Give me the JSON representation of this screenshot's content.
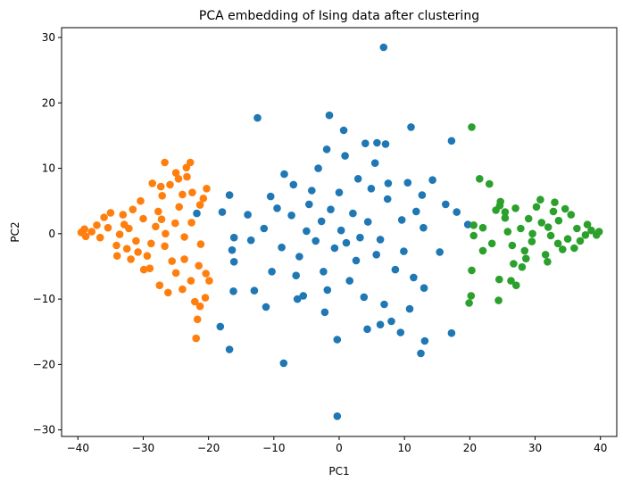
{
  "chart_data": {
    "type": "scatter",
    "title": "PCA embedding of Ising data after clustering",
    "xlabel": "PC1",
    "ylabel": "PC2",
    "xlim": [
      -42.5,
      42.5
    ],
    "ylim": [
      -31,
      31.5
    ],
    "xticks": [
      -40,
      -30,
      -20,
      -10,
      0,
      10,
      20,
      30,
      40
    ],
    "yticks": [
      -30,
      -20,
      -10,
      0,
      10,
      20,
      30
    ],
    "xtick_labels": [
      "−40",
      "−30",
      "−20",
      "−10",
      "0",
      "10",
      "20",
      "30",
      "40"
    ],
    "ytick_labels": [
      "−30",
      "−20",
      "−10",
      "0",
      "10",
      "20",
      "30"
    ],
    "grid": false,
    "legend": false,
    "series": [
      {
        "color": "#1f77b4",
        "values": [
          [
            6.8,
            28.5
          ],
          [
            -1.5,
            18.1
          ],
          [
            -12.5,
            17.7
          ],
          [
            11.0,
            16.3
          ],
          [
            17.2,
            14.2
          ],
          [
            0.7,
            15.8
          ],
          [
            -3.2,
            10.0
          ],
          [
            4.0,
            13.8
          ],
          [
            5.8,
            13.9
          ],
          [
            7.1,
            13.7
          ],
          [
            -1.9,
            12.9
          ],
          [
            0.9,
            11.9
          ],
          [
            14.3,
            8.2
          ],
          [
            -16.8,
            5.9
          ],
          [
            -21.8,
            3.1
          ],
          [
            -17.9,
            3.3
          ],
          [
            -10.5,
            5.7
          ],
          [
            -14.0,
            2.9
          ],
          [
            -13.5,
            -1.0
          ],
          [
            -16.1,
            -0.6
          ],
          [
            -16.4,
            -2.5
          ],
          [
            -16.1,
            -4.3
          ],
          [
            -16.2,
            -8.8
          ],
          [
            -13.0,
            -8.7
          ],
          [
            -18.2,
            -14.2
          ],
          [
            -16.8,
            -17.7
          ],
          [
            -8.5,
            -19.8
          ],
          [
            -0.3,
            -16.2
          ],
          [
            -0.3,
            -27.9
          ],
          [
            12.5,
            -18.3
          ],
          [
            13.1,
            -16.4
          ],
          [
            17.2,
            -15.2
          ],
          [
            4.3,
            -14.6
          ],
          [
            6.3,
            -13.9
          ],
          [
            9.4,
            -15.1
          ],
          [
            8.0,
            -13.4
          ],
          [
            -2.2,
            -12.0
          ],
          [
            19.7,
            1.4
          ],
          [
            18.0,
            3.3
          ],
          [
            16.3,
            4.5
          ],
          [
            15.4,
            -2.8
          ],
          [
            13.0,
            -8.3
          ],
          [
            10.8,
            -11.5
          ],
          [
            -11.2,
            -11.2
          ],
          [
            -6.4,
            -10.0
          ],
          [
            -8.4,
            9.1
          ],
          [
            12.7,
            5.9
          ],
          [
            -4.2,
            6.6
          ],
          [
            2.9,
            8.4
          ],
          [
            7.5,
            7.7
          ],
          [
            11.8,
            3.4
          ],
          [
            9.6,
            2.1
          ],
          [
            7.4,
            5.3
          ],
          [
            5.7,
            -3.2
          ],
          [
            -6.1,
            -3.5
          ],
          [
            -7.3,
            2.8
          ],
          [
            -2.4,
            -5.8
          ],
          [
            1.6,
            -7.2
          ],
          [
            4.9,
            6.9
          ],
          [
            -5.0,
            0.4
          ],
          [
            2.1,
            3.1
          ],
          [
            -0.7,
            -2.2
          ],
          [
            3.2,
            -0.6
          ],
          [
            -2.7,
            1.9
          ],
          [
            0.3,
            0.5
          ],
          [
            1.1,
            -1.4
          ],
          [
            -1.3,
            3.7
          ],
          [
            4.4,
            1.8
          ],
          [
            -3.6,
            -1.1
          ],
          [
            2.6,
            -4.1
          ],
          [
            -4.6,
            4.5
          ],
          [
            6.3,
            -0.9
          ],
          [
            -6.6,
            -6.4
          ],
          [
            8.6,
            -5.5
          ],
          [
            9.9,
            -2.7
          ],
          [
            -8.8,
            -2.1
          ],
          [
            -9.5,
            3.9
          ],
          [
            0.0,
            6.3
          ],
          [
            -1.8,
            -8.6
          ],
          [
            3.8,
            -9.7
          ],
          [
            5.5,
            10.8
          ],
          [
            -7.0,
            7.5
          ],
          [
            10.5,
            7.8
          ],
          [
            -10.3,
            -5.8
          ],
          [
            -11.5,
            0.8
          ],
          [
            12.9,
            0.9
          ],
          [
            11.4,
            -6.7
          ],
          [
            -5.5,
            -9.5
          ],
          [
            6.9,
            -10.8
          ]
        ]
      },
      {
        "color": "#ff7f0e",
        "values": [
          [
            -20.8,
            5.4
          ],
          [
            -20.3,
            6.9
          ],
          [
            -22.8,
            10.9
          ],
          [
            -26.7,
            10.9
          ],
          [
            -25.0,
            9.3
          ],
          [
            -24.6,
            8.4
          ],
          [
            -23.4,
            10.1
          ],
          [
            -23.3,
            8.7
          ],
          [
            -28.6,
            7.7
          ],
          [
            -27.3,
            7.2
          ],
          [
            -27.1,
            5.8
          ],
          [
            -22.5,
            6.3
          ],
          [
            -25.9,
            7.5
          ],
          [
            -21.3,
            4.4
          ],
          [
            -22.6,
            1.7
          ],
          [
            -21.2,
            -1.6
          ],
          [
            -21.5,
            -4.9
          ],
          [
            -20.4,
            -6.1
          ],
          [
            -19.9,
            -7.2
          ],
          [
            -20.5,
            -9.8
          ],
          [
            -22.1,
            -10.4
          ],
          [
            -21.3,
            -11.1
          ],
          [
            -21.7,
            -13.1
          ],
          [
            -21.9,
            -16.0
          ],
          [
            -24.0,
            -8.5
          ],
          [
            -26.2,
            -9.0
          ],
          [
            -27.5,
            -7.9
          ],
          [
            -29.0,
            -5.3
          ],
          [
            -25.6,
            -4.2
          ],
          [
            -23.7,
            -3.9
          ],
          [
            -26.7,
            -1.9
          ],
          [
            -23.7,
            -0.5
          ],
          [
            -25.1,
            1.6
          ],
          [
            -27.7,
            3.4
          ],
          [
            -24.5,
            4.1
          ],
          [
            -30.0,
            2.3
          ],
          [
            -31.1,
            -1.1
          ],
          [
            -32.9,
            1.4
          ],
          [
            -34.1,
            -1.8
          ],
          [
            -35.4,
            0.9
          ],
          [
            -36.6,
            -0.6
          ],
          [
            -37.9,
            0.3
          ],
          [
            -38.8,
            -0.4
          ],
          [
            -39.5,
            0.2
          ],
          [
            -39.0,
            0.7
          ],
          [
            -37.1,
            1.3
          ],
          [
            -33.6,
            -0.1
          ],
          [
            -32.2,
            0.8
          ],
          [
            -30.8,
            -2.8
          ],
          [
            -29.4,
            -3.4
          ],
          [
            -28.1,
            1.1
          ],
          [
            -26.6,
            0.0
          ],
          [
            -35.0,
            3.2
          ],
          [
            -34.0,
            -3.4
          ],
          [
            -31.6,
            3.7
          ],
          [
            -36.0,
            2.5
          ],
          [
            -30.4,
            5.0
          ],
          [
            -32.5,
            -2.3
          ],
          [
            -28.8,
            -1.5
          ],
          [
            -27.2,
            2.2
          ],
          [
            -33.1,
            2.9
          ],
          [
            -31.9,
            -3.9
          ],
          [
            -29.9,
            -5.5
          ],
          [
            -25.0,
            -6.0
          ],
          [
            -24.0,
            6.0
          ],
          [
            -22.7,
            -7.2
          ]
        ]
      },
      {
        "color": "#2ca02c",
        "values": [
          [
            20.3,
            16.3
          ],
          [
            21.5,
            8.4
          ],
          [
            23.0,
            7.6
          ],
          [
            24.7,
            4.9
          ],
          [
            24.6,
            4.3
          ],
          [
            25.4,
            3.3
          ],
          [
            22.0,
            0.9
          ],
          [
            20.6,
            1.3
          ],
          [
            20.6,
            -0.3
          ],
          [
            22.0,
            -2.6
          ],
          [
            20.3,
            -5.6
          ],
          [
            20.2,
            -9.5
          ],
          [
            19.9,
            -10.6
          ],
          [
            24.5,
            -7.0
          ],
          [
            24.4,
            -10.2
          ],
          [
            26.3,
            -7.2
          ],
          [
            27.1,
            -7.9
          ],
          [
            28.0,
            -5.1
          ],
          [
            26.7,
            -4.6
          ],
          [
            28.4,
            -2.6
          ],
          [
            29.5,
            -1.2
          ],
          [
            31.0,
            1.7
          ],
          [
            32.4,
            -0.3
          ],
          [
            33.6,
            2.0
          ],
          [
            35.0,
            -0.8
          ],
          [
            36.4,
            0.8
          ],
          [
            37.7,
            -0.2
          ],
          [
            38.6,
            0.5
          ],
          [
            39.4,
            -0.2
          ],
          [
            39.8,
            0.3
          ],
          [
            38.0,
            1.4
          ],
          [
            36.9,
            -1.1
          ],
          [
            34.2,
            -2.4
          ],
          [
            32.8,
            3.4
          ],
          [
            31.6,
            -3.2
          ],
          [
            30.2,
            4.1
          ],
          [
            29.0,
            2.3
          ],
          [
            27.8,
            0.8
          ],
          [
            26.5,
            -1.8
          ],
          [
            25.4,
            2.4
          ],
          [
            30.8,
            5.2
          ],
          [
            33.0,
            4.8
          ],
          [
            35.5,
            2.9
          ],
          [
            31.9,
            -4.3
          ],
          [
            28.6,
            -3.8
          ],
          [
            34.6,
            3.8
          ],
          [
            36.0,
            -2.2
          ],
          [
            29.6,
            0.0
          ],
          [
            32.0,
            1.0
          ],
          [
            33.5,
            -1.5
          ],
          [
            27.0,
            3.9
          ],
          [
            24.0,
            3.6
          ],
          [
            25.8,
            0.3
          ],
          [
            23.4,
            -1.5
          ]
        ]
      }
    ]
  }
}
